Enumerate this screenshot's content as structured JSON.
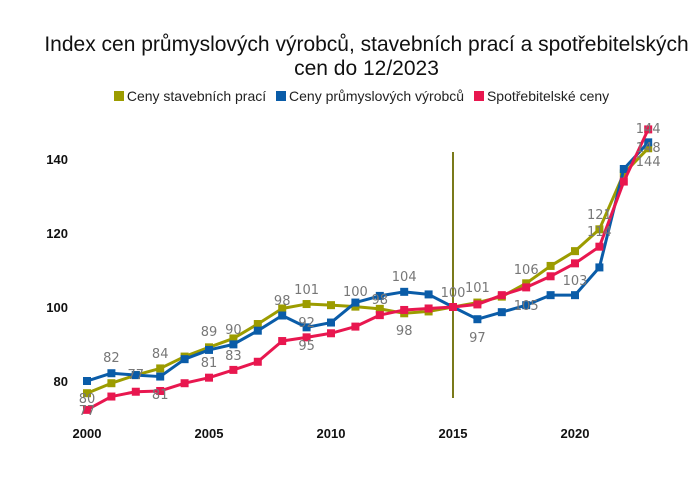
{
  "chart_data": {
    "type": "line",
    "title": "Index cen průmyslových výrobců, stavebních prací a spotřebitelských cen do 12/2023",
    "title_lines": [
      "Index cen průmyslových výrobců, stavebních prací a spotřebitelských",
      "cen do 12/2023"
    ],
    "x": [
      2000,
      2001,
      2002,
      2003,
      2004,
      2005,
      2006,
      2007,
      2008,
      2009,
      2010,
      2011,
      2012,
      2013,
      2014,
      2015,
      2016,
      2017,
      2018,
      2019,
      2020,
      2021,
      2022,
      2023
    ],
    "x_ticks": [
      2000,
      2005,
      2010,
      2015,
      2020
    ],
    "y_ticks": [
      80,
      100,
      120,
      140
    ],
    "ylim": [
      70,
      150
    ],
    "xlim": [
      2000,
      2023
    ],
    "grid": false,
    "legend_position": "top",
    "reference_line": {
      "x": 2015,
      "color": "#7a7a1a"
    },
    "series": [
      {
        "name": "Ceny stavebních prací",
        "color": "#9c9c00",
        "values": [
          76.7,
          79.4,
          81.6,
          83.4,
          86.6,
          89.1,
          91.5,
          95.4,
          99.6,
          100.8,
          100.5,
          100.1,
          99.5,
          98.3,
          98.8,
          100,
          101.2,
          102.8,
          106.4,
          111.1,
          115.1,
          121,
          136.1,
          142.9
        ]
      },
      {
        "name": "Ceny průmyslových výrobců",
        "color": "#0a5ca8",
        "values": [
          80,
          82.1,
          81.6,
          81.2,
          85.9,
          88.4,
          89.9,
          93.6,
          97.7,
          94.5,
          95.8,
          101.2,
          103,
          104.1,
          103.4,
          100,
          96.7,
          98.6,
          100.5,
          103.2,
          103.2,
          110.7,
          137.3,
          144.5
        ]
      },
      {
        "name": "Spotřebitelské ceny",
        "color": "#e8174f",
        "values": [
          72.2,
          75.8,
          77.1,
          77.3,
          79.4,
          80.9,
          83,
          85.2,
          90.8,
          91.8,
          92.9,
          94.7,
          97.8,
          99.2,
          99.6,
          100,
          100.7,
          103.2,
          105.3,
          108.3,
          111.8,
          116.3,
          133.9,
          148
        ]
      }
    ],
    "data_labels": [
      {
        "x": 2000,
        "y": 75.4,
        "text": "80"
      },
      {
        "x": 2000,
        "y": 72.2,
        "text": "77"
      },
      {
        "x": 2001,
        "y": 86.5,
        "text": "82"
      },
      {
        "x": 2002,
        "y": 81.9,
        "text": "77"
      },
      {
        "x": 2003,
        "y": 87.6,
        "text": "84"
      },
      {
        "x": 2003,
        "y": 76.5,
        "text": "81"
      },
      {
        "x": 2005,
        "y": 93.5,
        "text": "89"
      },
      {
        "x": 2005,
        "y": 85.1,
        "text": "81"
      },
      {
        "x": 2006,
        "y": 94,
        "text": "90"
      },
      {
        "x": 2006,
        "y": 87,
        "text": "83"
      },
      {
        "x": 2008,
        "y": 101.9,
        "text": "98"
      },
      {
        "x": 2009,
        "y": 104.9,
        "text": "101"
      },
      {
        "x": 2009,
        "y": 96,
        "text": "92"
      },
      {
        "x": 2009,
        "y": 89.7,
        "text": "95"
      },
      {
        "x": 2011,
        "y": 104.3,
        "text": "100"
      },
      {
        "x": 2012,
        "y": 102.2,
        "text": "98"
      },
      {
        "x": 2013,
        "y": 108.4,
        "text": "104"
      },
      {
        "x": 2013,
        "y": 93.8,
        "text": "98"
      },
      {
        "x": 2015,
        "y": 104,
        "text": "100"
      },
      {
        "x": 2016,
        "y": 105.4,
        "text": "101"
      },
      {
        "x": 2016,
        "y": 91.9,
        "text": "97"
      },
      {
        "x": 2018,
        "y": 110.3,
        "text": "106"
      },
      {
        "x": 2018,
        "y": 100.5,
        "text": "105"
      },
      {
        "x": 2020,
        "y": 107.3,
        "text": "103"
      },
      {
        "x": 2021,
        "y": 125.1,
        "text": "121"
      },
      {
        "x": 2021,
        "y": 120.5,
        "text": "114"
      },
      {
        "x": 2023,
        "y": 148.4,
        "text": "144"
      },
      {
        "x": 2023,
        "y": 143.2,
        "text": "148"
      },
      {
        "x": 2023,
        "y": 139.5,
        "text": "144"
      }
    ]
  }
}
